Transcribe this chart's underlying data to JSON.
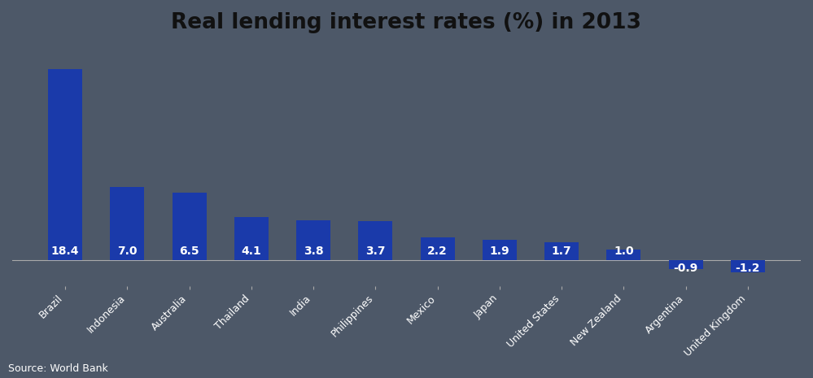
{
  "title": "Real lending interest rates (%) in 2013",
  "categories": [
    "Brazil",
    "Indonesia",
    "Australia",
    "Thailand",
    "India",
    "Philippines",
    "Mexico",
    "Japan",
    "United States",
    "New Zealand",
    "Argentina",
    "United Kingdom"
  ],
  "values": [
    18.4,
    7.0,
    6.5,
    4.1,
    3.8,
    3.7,
    2.2,
    1.9,
    1.7,
    1.0,
    -0.9,
    -1.2
  ],
  "bar_color": "#1a3aaa",
  "background_color": "#4d5868",
  "text_color": "#ffffff",
  "title_color": "#111111",
  "label_fontsize": 10,
  "title_fontsize": 19,
  "xtick_fontsize": 9,
  "source_text": "Source: World Bank",
  "source_fontsize": 9,
  "ylim": [
    -2.5,
    21
  ],
  "bar_width": 0.55
}
